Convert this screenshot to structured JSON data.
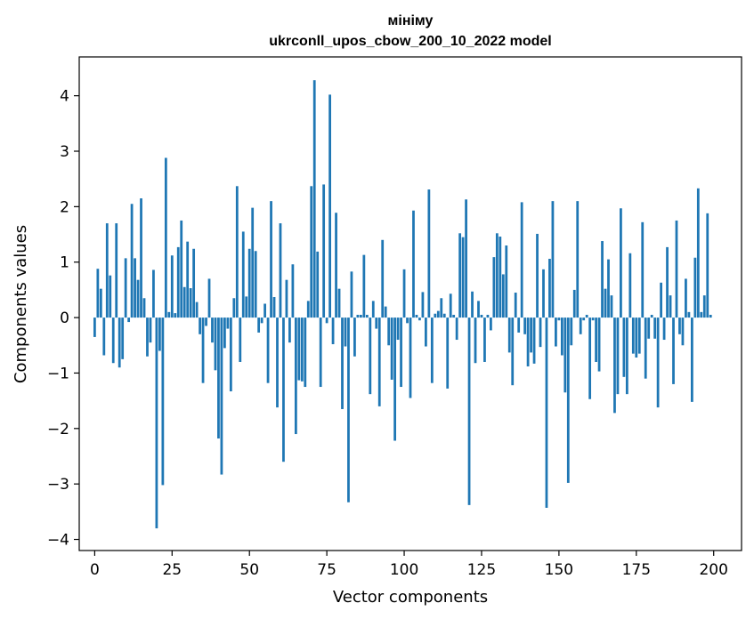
{
  "chart_data": {
    "type": "bar",
    "title_line1": "мініму",
    "title_line2": "ukrconll_upos_cbow_200_10_2022 model",
    "xlabel": "Vector components",
    "ylabel": "Components values",
    "xlim": [
      -5,
      209
    ],
    "ylim": [
      -4.2,
      4.7
    ],
    "xticks": [
      0,
      25,
      50,
      75,
      100,
      125,
      150,
      175,
      200
    ],
    "yticks": [
      -4,
      -3,
      -2,
      -1,
      0,
      1,
      2,
      3,
      4
    ],
    "bar_color": "#1f77b4",
    "values": [
      -0.35,
      0.88,
      0.52,
      -0.68,
      1.7,
      0.76,
      -0.82,
      1.7,
      -0.9,
      -0.75,
      1.07,
      -0.08,
      2.05,
      1.07,
      0.68,
      2.15,
      0.35,
      -0.7,
      -0.45,
      0.86,
      -3.8,
      -0.6,
      -3.02,
      2.88,
      0.1,
      1.12,
      0.08,
      1.27,
      1.75,
      0.55,
      1.37,
      0.53,
      1.24,
      0.28,
      -0.3,
      -1.18,
      -0.15,
      0.7,
      -0.45,
      -0.95,
      -2.18,
      -2.83,
      -0.55,
      -0.2,
      -1.33,
      0.35,
      2.37,
      -0.8,
      1.55,
      0.38,
      1.24,
      1.98,
      1.2,
      -0.27,
      -0.1,
      0.25,
      -1.18,
      2.1,
      0.37,
      -1.62,
      1.7,
      -2.6,
      0.68,
      -0.45,
      0.96,
      -2.1,
      -1.13,
      -1.15,
      -1.25,
      0.3,
      2.37,
      4.28,
      1.19,
      -1.25,
      2.4,
      -0.1,
      4.02,
      -0.48,
      1.89,
      0.52,
      -1.65,
      -0.52,
      -3.33,
      0.83,
      -0.7,
      0.05,
      0.05,
      1.13,
      0.05,
      -1.38,
      0.3,
      -0.2,
      -1.6,
      1.4,
      0.2,
      -0.5,
      -1.12,
      -2.22,
      -0.4,
      -1.25,
      0.87,
      -0.1,
      -1.45,
      1.93,
      0.05,
      -0.05,
      0.46,
      -0.52,
      2.31,
      -1.18,
      0.07,
      0.12,
      0.35,
      0.07,
      -1.28,
      0.43,
      0.05,
      -0.4,
      1.52,
      1.45,
      2.13,
      -3.38,
      0.47,
      -0.82,
      0.3,
      0.05,
      -0.8,
      0.05,
      -0.23,
      1.09,
      1.52,
      1.46,
      0.78,
      1.3,
      -0.63,
      -1.22,
      0.45,
      -0.27,
      2.08,
      -0.3,
      -0.88,
      -0.63,
      -0.83,
      1.51,
      -0.53,
      0.87,
      -3.43,
      1.06,
      2.1,
      -0.52,
      -0.05,
      -0.68,
      -1.35,
      -2.98,
      -0.5,
      0.5,
      2.1,
      -0.3,
      -0.05,
      0.05,
      -1.47,
      -0.05,
      -0.8,
      -0.97,
      1.38,
      0.52,
      1.05,
      0.4,
      -1.72,
      -1.38,
      1.97,
      -1.07,
      -1.38,
      1.16,
      -0.65,
      -0.72,
      -0.65,
      1.72,
      -1.1,
      -0.38,
      0.05,
      -0.38,
      -1.62,
      0.63,
      -0.4,
      1.27,
      0.4,
      -1.2,
      1.75,
      -0.3,
      -0.5,
      0.7,
      0.1,
      -1.52,
      1.08,
      2.33,
      0.1,
      0.4,
      1.88,
      0.05
    ]
  }
}
